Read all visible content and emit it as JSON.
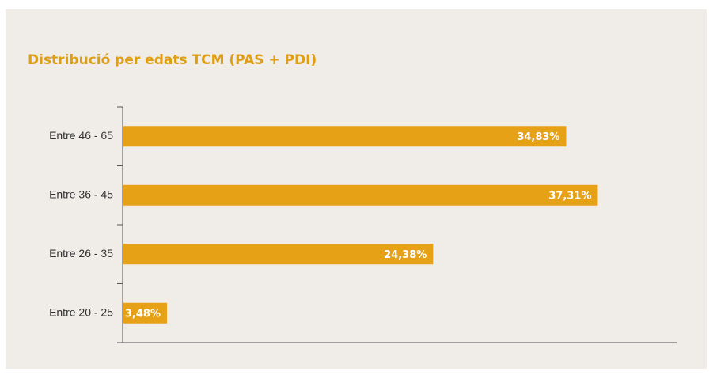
{
  "chart_data": {
    "type": "hbar",
    "title": "Distribució per edats TCM (PAS + PDI)",
    "categories": [
      "Entre 46 - 65",
      "Entre 36 - 45",
      "Entre 26 - 35",
      "Entre 20 - 25"
    ],
    "values": [
      34.83,
      37.31,
      24.38,
      3.48
    ],
    "value_labels": [
      "34,83%",
      "37,31%",
      "24,38%",
      "3,48%"
    ],
    "color": "#e6a117",
    "xlim": [
      0,
      43.5
    ]
  }
}
